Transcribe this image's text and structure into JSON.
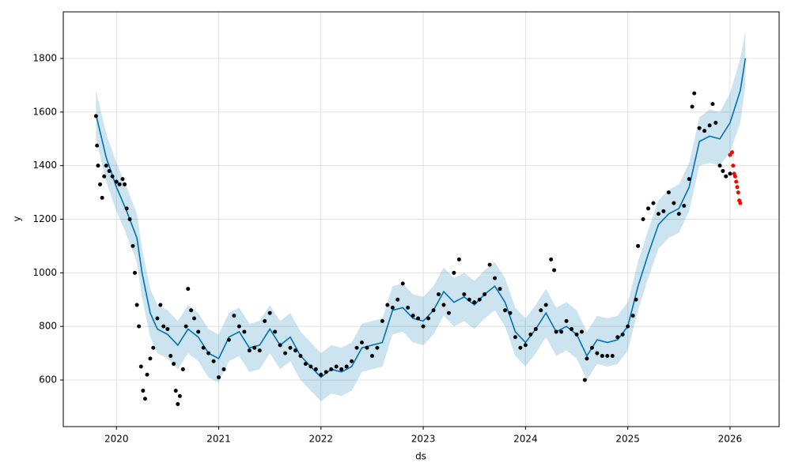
{
  "chart_data": {
    "type": "line",
    "xlabel": "ds",
    "ylabel": "y",
    "xlim": [
      2019.48,
      2026.48
    ],
    "ylim": [
      426,
      1974
    ],
    "xticks": [
      2020,
      2021,
      2022,
      2023,
      2024,
      2025,
      2026
    ],
    "yticks": [
      600,
      800,
      1000,
      1200,
      1400,
      1600,
      1800
    ],
    "grid": true,
    "series": [
      {
        "type": "line",
        "color": "#0072B2",
        "x": [
          2019.8,
          2019.9,
          2020.0,
          2020.1,
          2020.2,
          2020.25,
          2020.33,
          2020.4,
          2020.5,
          2020.6,
          2020.7,
          2020.8,
          2020.9,
          2021.0,
          2021.1,
          2021.2,
          2021.3,
          2021.4,
          2021.5,
          2021.6,
          2021.7,
          2021.8,
          2021.9,
          2022.0,
          2022.1,
          2022.2,
          2022.3,
          2022.4,
          2022.5,
          2022.6,
          2022.7,
          2022.8,
          2022.9,
          2023.0,
          2023.1,
          2023.2,
          2023.3,
          2023.4,
          2023.5,
          2023.6,
          2023.7,
          2023.8,
          2023.9,
          2024.0,
          2024.1,
          2024.2,
          2024.3,
          2024.4,
          2024.5,
          2024.6,
          2024.7,
          2024.8,
          2024.9,
          2025.0,
          2025.1,
          2025.2,
          2025.3,
          2025.4,
          2025.5,
          2025.6,
          2025.7,
          2025.8,
          2025.9,
          2026.0,
          2026.1,
          2026.15
        ],
        "values": [
          1590,
          1430,
          1320,
          1230,
          1130,
          1000,
          850,
          790,
          770,
          730,
          790,
          760,
          700,
          680,
          760,
          780,
          720,
          730,
          790,
          730,
          760,
          690,
          650,
          610,
          640,
          630,
          650,
          720,
          730,
          740,
          860,
          870,
          830,
          820,
          860,
          930,
          890,
          910,
          880,
          920,
          950,
          890,
          780,
          740,
          790,
          850,
          780,
          800,
          770,
          690,
          750,
          740,
          750,
          800,
          950,
          1070,
          1180,
          1220,
          1240,
          1320,
          1490,
          1510,
          1500,
          1560,
          1680,
          1800
        ],
        "lower": [
          1500,
          1340,
          1230,
          1140,
          1040,
          910,
          760,
          700,
          680,
          640,
          700,
          670,
          610,
          590,
          670,
          690,
          630,
          640,
          700,
          640,
          670,
          600,
          560,
          520,
          550,
          540,
          560,
          630,
          640,
          650,
          770,
          780,
          740,
          730,
          770,
          840,
          800,
          820,
          790,
          830,
          860,
          800,
          690,
          650,
          700,
          760,
          690,
          710,
          680,
          600,
          660,
          650,
          660,
          710,
          860,
          980,
          1090,
          1130,
          1150,
          1230,
          1400,
          1410,
          1400,
          1450,
          1560,
          1700
        ],
        "upper": [
          1680,
          1520,
          1410,
          1320,
          1220,
          1090,
          940,
          880,
          860,
          820,
          880,
          850,
          790,
          770,
          850,
          870,
          810,
          820,
          880,
          820,
          850,
          780,
          740,
          700,
          730,
          720,
          740,
          810,
          820,
          830,
          950,
          960,
          920,
          910,
          950,
          1020,
          980,
          1000,
          970,
          1010,
          1040,
          980,
          870,
          830,
          880,
          940,
          870,
          890,
          860,
          780,
          840,
          830,
          840,
          890,
          1040,
          1160,
          1270,
          1310,
          1330,
          1410,
          1580,
          1610,
          1600,
          1670,
          1800,
          1900
        ]
      },
      {
        "type": "scatter",
        "color": "#000000",
        "x": [
          2019.8,
          2019.81,
          2019.82,
          2019.84,
          2019.86,
          2019.88,
          2019.9,
          2019.93,
          2019.96,
          2020.0,
          2020.03,
          2020.06,
          2020.08,
          2020.1,
          2020.13,
          2020.16,
          2020.18,
          2020.2,
          2020.22,
          2020.24,
          2020.26,
          2020.28,
          2020.3,
          2020.33,
          2020.36,
          2020.4,
          2020.43,
          2020.46,
          2020.5,
          2020.53,
          2020.56,
          2020.58,
          2020.6,
          2020.62,
          2020.65,
          2020.68,
          2020.7,
          2020.73,
          2020.76,
          2020.8,
          2020.85,
          2020.9,
          2020.95,
          2021.0,
          2021.05,
          2021.1,
          2021.15,
          2021.2,
          2021.25,
          2021.3,
          2021.35,
          2021.4,
          2021.45,
          2021.5,
          2021.55,
          2021.6,
          2021.65,
          2021.7,
          2021.75,
          2021.8,
          2021.85,
          2021.9,
          2021.95,
          2022.0,
          2022.05,
          2022.1,
          2022.15,
          2022.2,
          2022.25,
          2022.3,
          2022.35,
          2022.4,
          2022.45,
          2022.5,
          2022.55,
          2022.6,
          2022.65,
          2022.7,
          2022.75,
          2022.8,
          2022.85,
          2022.9,
          2022.95,
          2023.0,
          2023.05,
          2023.1,
          2023.15,
          2023.2,
          2023.25,
          2023.3,
          2023.35,
          2023.4,
          2023.45,
          2023.5,
          2023.55,
          2023.6,
          2023.65,
          2023.7,
          2023.75,
          2023.8,
          2023.85,
          2023.9,
          2023.95,
          2024.0,
          2024.05,
          2024.1,
          2024.15,
          2024.2,
          2024.25,
          2024.28,
          2024.3,
          2024.35,
          2024.4,
          2024.45,
          2024.5,
          2024.55,
          2024.58,
          2024.6,
          2024.65,
          2024.7,
          2024.75,
          2024.8,
          2024.85,
          2024.9,
          2024.95,
          2025.0,
          2025.05,
          2025.08,
          2025.1,
          2025.15,
          2025.2,
          2025.25,
          2025.3,
          2025.35,
          2025.4,
          2025.45,
          2025.5,
          2025.55,
          2025.6,
          2025.63,
          2025.65,
          2025.7,
          2025.75,
          2025.8,
          2025.83,
          2025.86,
          2025.9,
          2025.93,
          2025.96,
          2026.0
        ],
        "values": [
          1585,
          1475,
          1400,
          1330,
          1280,
          1360,
          1400,
          1380,
          1360,
          1340,
          1330,
          1350,
          1330,
          1240,
          1200,
          1100,
          1000,
          880,
          800,
          650,
          560,
          530,
          620,
          680,
          720,
          830,
          880,
          800,
          790,
          690,
          660,
          560,
          510,
          540,
          640,
          800,
          940,
          860,
          830,
          780,
          720,
          700,
          670,
          610,
          640,
          750,
          840,
          800,
          780,
          710,
          720,
          710,
          820,
          850,
          780,
          730,
          700,
          720,
          710,
          690,
          660,
          650,
          640,
          620,
          630,
          640,
          650,
          640,
          650,
          670,
          720,
          740,
          720,
          690,
          720,
          820,
          880,
          870,
          900,
          960,
          870,
          840,
          830,
          800,
          830,
          860,
          920,
          880,
          850,
          1000,
          1050,
          920,
          900,
          890,
          900,
          920,
          1030,
          980,
          940,
          860,
          850,
          760,
          720,
          730,
          770,
          790,
          860,
          880,
          1050,
          1010,
          780,
          780,
          820,
          790,
          770,
          780,
          600,
          680,
          720,
          700,
          690,
          690,
          690,
          760,
          770,
          800,
          840,
          900,
          1100,
          1200,
          1240,
          1260,
          1220,
          1230,
          1300,
          1260,
          1220,
          1250,
          1350,
          1620,
          1670,
          1540,
          1530,
          1550,
          1630,
          1560,
          1400,
          1380,
          1360,
          1370
        ]
      },
      {
        "type": "scatter",
        "color": "#ff0000",
        "x": [
          2026.0,
          2026.02,
          2026.03,
          2026.04,
          2026.05,
          2026.06,
          2026.07,
          2026.08,
          2026.09,
          2026.1
        ],
        "values": [
          1440,
          1450,
          1400,
          1370,
          1360,
          1340,
          1320,
          1300,
          1270,
          1260
        ]
      }
    ]
  }
}
